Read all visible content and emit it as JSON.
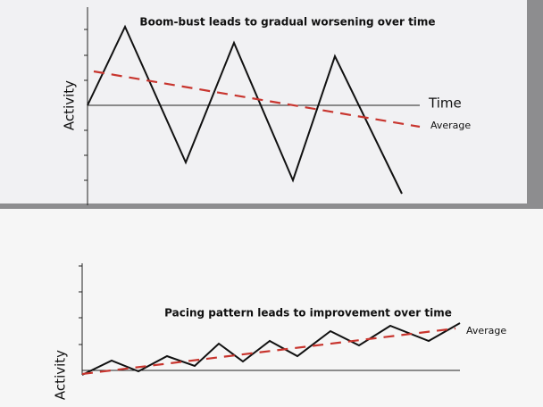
{
  "chart_data": [
    {
      "type": "line",
      "title": "Boom-bust leads to gradual worsening over time",
      "ylabel": "Activity",
      "xlabel": "Time",
      "xlim": [
        0,
        37.2
      ],
      "ylim": [
        -11.2,
        11
      ],
      "series": [
        {
          "x": [
            0,
            4.2,
            11,
            16.4,
            23,
            27.7,
            35.2
          ],
          "values": [
            0,
            8.8,
            -6.4,
            7,
            -8.4,
            5.5,
            -9.9
          ],
          "color": "#111111"
        },
        {
          "name": "Average",
          "x": [
            0.7,
            37.2
          ],
          "values": [
            3.8,
            -2.4
          ],
          "color": "#c8352e",
          "dashed": true
        }
      ]
    },
    {
      "type": "line",
      "title": "Pacing pattern leads to improvement over time",
      "ylabel": "Activity",
      "xlim": [
        0,
        42.3
      ],
      "ylim": [
        -0.5,
        12
      ],
      "series": [
        {
          "x": [
            0,
            3.3,
            6.3,
            9.5,
            12.6,
            15.3,
            18,
            21,
            24.1,
            27.8,
            31,
            34.5,
            38.8,
            42.3
          ],
          "values": [
            -0.5,
            1.1,
            -0.1,
            1.6,
            0.5,
            3,
            1,
            3.3,
            1.6,
            4.4,
            2.8,
            5,
            3.3,
            5.3
          ],
          "color": "#111111"
        },
        {
          "name": "Average",
          "x": [
            0,
            41.8
          ],
          "values": [
            -0.4,
            4.7
          ],
          "color": "#c8352e",
          "dashed": true
        }
      ]
    }
  ]
}
